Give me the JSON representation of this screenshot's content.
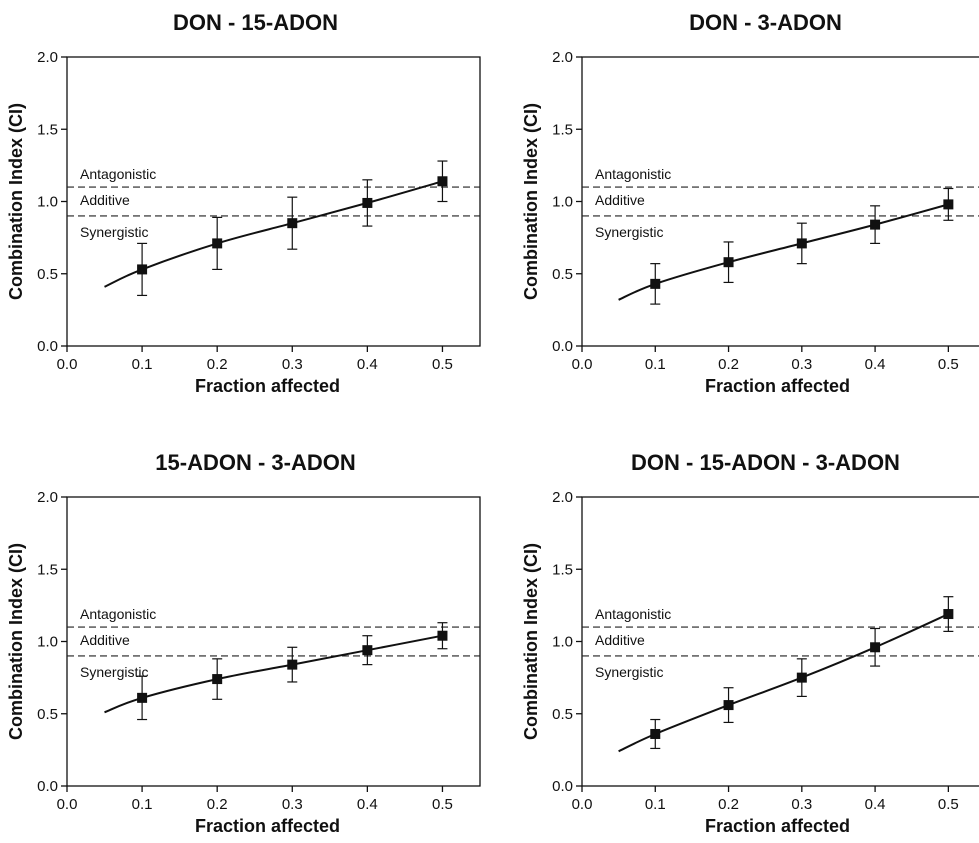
{
  "chart_data": [
    {
      "type": "line",
      "title": "DON - 15-ADON",
      "xlabel": "Fraction affected",
      "ylabel": "Combination Index (CI)",
      "xlim": [
        0.0,
        0.55
      ],
      "ylim": [
        0.0,
        2.0
      ],
      "x_ticks": [
        "0.0",
        "0.1",
        "0.2",
        "0.3",
        "0.4",
        "0.5"
      ],
      "y_ticks": [
        "0.0",
        "0.5",
        "1.0",
        "1.5",
        "2.0"
      ],
      "reference_lines": [
        1.1,
        0.9
      ],
      "zone_labels": [
        "Antagonistic",
        "Additive",
        "Synergistic"
      ],
      "points": {
        "x": [
          0.1,
          0.2,
          0.3,
          0.4,
          0.5
        ],
        "y": [
          0.53,
          0.71,
          0.85,
          0.99,
          1.14
        ],
        "err": [
          0.18,
          0.18,
          0.18,
          0.16,
          0.14
        ]
      },
      "curve": {
        "x": [
          0.05,
          0.1,
          0.2,
          0.3,
          0.4,
          0.5
        ],
        "y": [
          0.41,
          0.53,
          0.71,
          0.85,
          0.99,
          1.14
        ]
      },
      "grid": false
    },
    {
      "type": "line",
      "title": "DON - 3-ADON",
      "xlabel": "Fraction affected",
      "ylabel": "Combination Index (CI)",
      "xlim": [
        0.0,
        0.55
      ],
      "ylim": [
        0.0,
        2.0
      ],
      "x_ticks": [
        "0.0",
        "0.1",
        "0.2",
        "0.3",
        "0.4",
        "0.5"
      ],
      "y_ticks": [
        "0.0",
        "0.5",
        "1.0",
        "1.5",
        "2.0"
      ],
      "reference_lines": [
        1.1,
        0.9
      ],
      "zone_labels": [
        "Antagonistic",
        "Additive",
        "Synergistic"
      ],
      "points": {
        "x": [
          0.1,
          0.2,
          0.3,
          0.4,
          0.5
        ],
        "y": [
          0.43,
          0.58,
          0.71,
          0.84,
          0.98
        ],
        "err": [
          0.14,
          0.14,
          0.14,
          0.13,
          0.11
        ]
      },
      "curve": {
        "x": [
          0.05,
          0.1,
          0.2,
          0.3,
          0.4,
          0.5
        ],
        "y": [
          0.32,
          0.43,
          0.58,
          0.71,
          0.84,
          0.98
        ]
      },
      "grid": false
    },
    {
      "type": "line",
      "title": "15-ADON - 3-ADON",
      "xlabel": "Fraction affected",
      "ylabel": "Combination Index (CI)",
      "xlim": [
        0.0,
        0.55
      ],
      "ylim": [
        0.0,
        2.0
      ],
      "x_ticks": [
        "0.0",
        "0.1",
        "0.2",
        "0.3",
        "0.4",
        "0.5"
      ],
      "y_ticks": [
        "0.0",
        "0.5",
        "1.0",
        "1.5",
        "2.0"
      ],
      "reference_lines": [
        1.1,
        0.9
      ],
      "zone_labels": [
        "Antagonistic",
        "Additive",
        "Synergistic"
      ],
      "points": {
        "x": [
          0.1,
          0.2,
          0.3,
          0.4,
          0.5
        ],
        "y": [
          0.61,
          0.74,
          0.84,
          0.94,
          1.04
        ],
        "err": [
          0.15,
          0.14,
          0.12,
          0.1,
          0.09
        ]
      },
      "curve": {
        "x": [
          0.05,
          0.1,
          0.2,
          0.3,
          0.4,
          0.5
        ],
        "y": [
          0.51,
          0.61,
          0.74,
          0.84,
          0.94,
          1.04
        ]
      },
      "grid": false
    },
    {
      "type": "line",
      "title": "DON - 15-ADON - 3-ADON",
      "xlabel": "Fraction affected",
      "ylabel": "Combination Index (CI)",
      "xlim": [
        0.0,
        0.55
      ],
      "ylim": [
        0.0,
        2.0
      ],
      "x_ticks": [
        "0.0",
        "0.1",
        "0.2",
        "0.3",
        "0.4",
        "0.5"
      ],
      "y_ticks": [
        "0.0",
        "0.5",
        "1.0",
        "1.5",
        "2.0"
      ],
      "reference_lines": [
        1.1,
        0.9
      ],
      "zone_labels": [
        "Antagonistic",
        "Additive",
        "Synergistic"
      ],
      "points": {
        "x": [
          0.1,
          0.2,
          0.3,
          0.4,
          0.5
        ],
        "y": [
          0.36,
          0.56,
          0.75,
          0.96,
          1.19
        ],
        "err": [
          0.1,
          0.12,
          0.13,
          0.13,
          0.12
        ]
      },
      "curve": {
        "x": [
          0.05,
          0.1,
          0.2,
          0.3,
          0.4,
          0.5
        ],
        "y": [
          0.24,
          0.36,
          0.56,
          0.75,
          0.96,
          1.19
        ]
      },
      "grid": false
    }
  ]
}
